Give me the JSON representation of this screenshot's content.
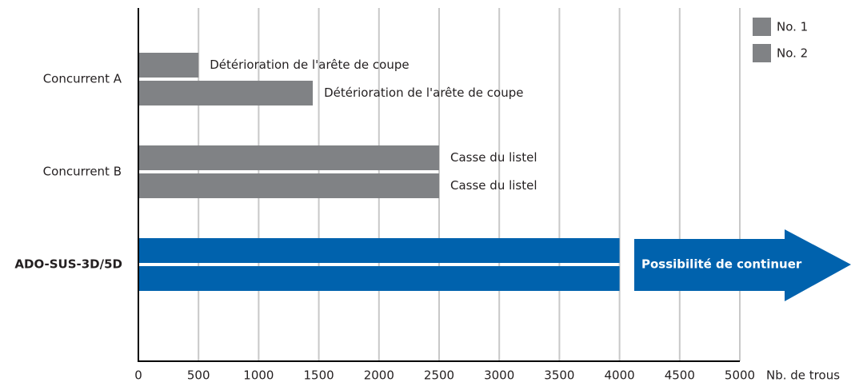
{
  "chart_data": {
    "type": "hbar",
    "categories": [
      "Concurrent A",
      "Concurrent B",
      "ADO-SUS-3D/5D"
    ],
    "series": [
      {
        "name": "No. 1",
        "color": "#808285",
        "colors": [
          "#808285",
          "#808285",
          "#0062ad"
        ],
        "values": [
          500,
          2500,
          4000
        ],
        "annotations": [
          "Détérioration de l'arête de coupe",
          "Casse du listel",
          null
        ]
      },
      {
        "name": "No. 2",
        "color": "#808285",
        "colors": [
          "#808285",
          "#808285",
          "#0062ad"
        ],
        "values": [
          1450,
          2500,
          4000
        ],
        "annotations": [
          "Détérioration de l'arête de coupe",
          "Casse du listel",
          null
        ]
      }
    ],
    "xlabel": "Nb. de trous",
    "arrow_label": "Possibilité de continuer",
    "xlim": [
      0,
      5000
    ],
    "xticks": [
      0,
      500,
      1000,
      1500,
      2000,
      2500,
      3000,
      3500,
      4000,
      4500,
      5000
    ],
    "grid": true,
    "legend": "upper right"
  }
}
